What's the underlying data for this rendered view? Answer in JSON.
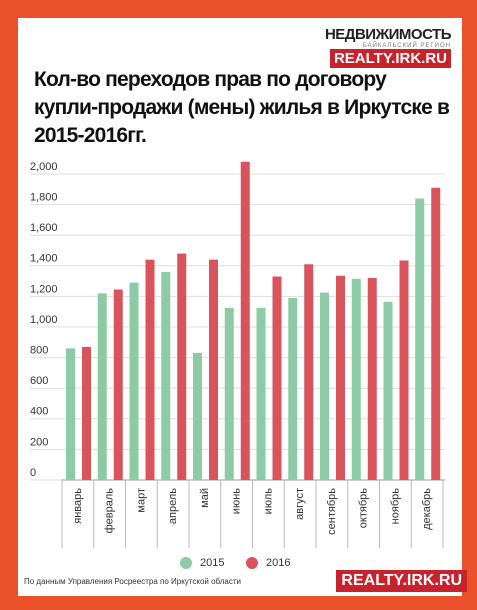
{
  "header": {
    "logo": "НЕДВИЖИМОСТЬ",
    "logo_sub": "БАЙКАЛЬСКИЙ РЕГИОН",
    "site": "REALTY.IRK.RU"
  },
  "chart_data": {
    "type": "bar",
    "title": "Кол-во переходов прав по договору купли-продажи (мены) жилья в Иркутске в 2015-2016гг.",
    "categories": [
      "январь",
      "февраль",
      "март",
      "апрель",
      "май",
      "июнь",
      "июль",
      "август",
      "сентябрь",
      "октябрь",
      "ноябрь",
      "декабрь"
    ],
    "series": [
      {
        "name": "2015",
        "color": "#8dcaa6",
        "values": [
          860,
          1220,
          1290,
          1360,
          830,
          1125,
          1125,
          1190,
          1225,
          1315,
          1165,
          1840
        ]
      },
      {
        "name": "2016",
        "color": "#d9545a",
        "values": [
          870,
          1245,
          1440,
          1480,
          1440,
          2080,
          1330,
          1410,
          1335,
          1320,
          1435,
          1910
        ]
      }
    ],
    "ylim": [
      0,
      2000
    ],
    "yticks": [
      0,
      200,
      400,
      600,
      800,
      {
        "value": 1000,
        "label": "1,000"
      },
      {
        "value": 1200,
        "label": "1,200"
      },
      {
        "value": 1400,
        "label": "1,400"
      },
      {
        "value": 1600,
        "label": "1,600"
      },
      {
        "value": 1800,
        "label": "1,800"
      },
      {
        "value": 2000,
        "label": "2,000"
      }
    ],
    "grid": true,
    "legend": "bottom"
  },
  "footer": {
    "source": "По данным Управления Росреестра по Иркутской области",
    "site": "REALTY.IRK.RU"
  }
}
